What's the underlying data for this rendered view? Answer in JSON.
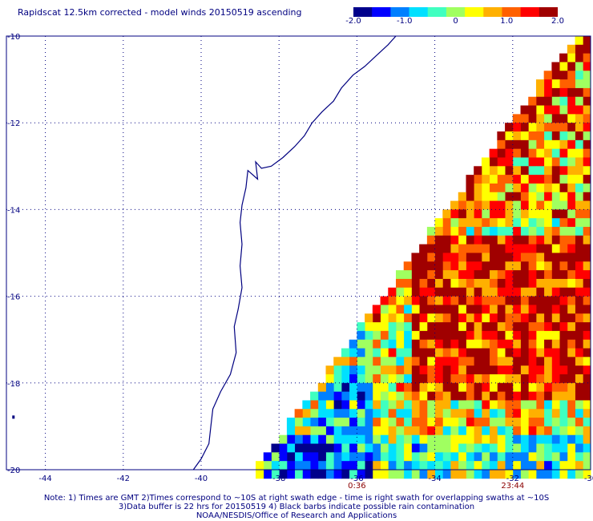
{
  "title": "Rapidscat 12.5km corrected - model winds 20150519 ascending",
  "colorbar": {
    "ticks": [
      "-2.0",
      "-1.0",
      "0",
      "1.0",
      "2.0"
    ],
    "tick_values": [
      -2,
      -1,
      0,
      1,
      2
    ],
    "colors": [
      "#00008b",
      "#0000ff",
      "#0080ff",
      "#00e0ff",
      "#40ffc0",
      "#a0ff60",
      "#ffff00",
      "#ffb000",
      "#ff6000",
      "#ff0000",
      "#a00000"
    ]
  },
  "map": {
    "lon_labels": [
      "-44",
      "-42",
      "-40",
      "-38",
      "-36",
      "-34",
      "-32",
      "-30"
    ],
    "lon_values": [
      -44,
      -42,
      -40,
      -38,
      -36,
      -34,
      -32,
      -30
    ],
    "lat_labels": [
      "-10",
      "-12",
      "-14",
      "-16",
      "-18",
      "-20"
    ],
    "lat_values": [
      -10,
      -12,
      -14,
      -16,
      -18,
      -20
    ],
    "lon_range": [
      -45,
      -30
    ],
    "lat_range": [
      -20,
      -10
    ],
    "gridlines": true,
    "coastline_color": "#000080",
    "swath": "wind speed difference (corrected - model), m/s"
  },
  "times": [
    {
      "label": "0:36",
      "lon": -36
    },
    {
      "label": "23:44",
      "lon": -32
    }
  ],
  "notes": {
    "line1": "Note: 1) Times are GMT 2)Times correspond to ~10S at right swath edge - time is right swath for overlapping swaths at ~10S",
    "line2": "3)Data buffer is 22 hrs for 20150519 4) Black barbs indicate possible rain contamination",
    "line3": "NOAA/NESDIS/Office of Research and Applications"
  }
}
